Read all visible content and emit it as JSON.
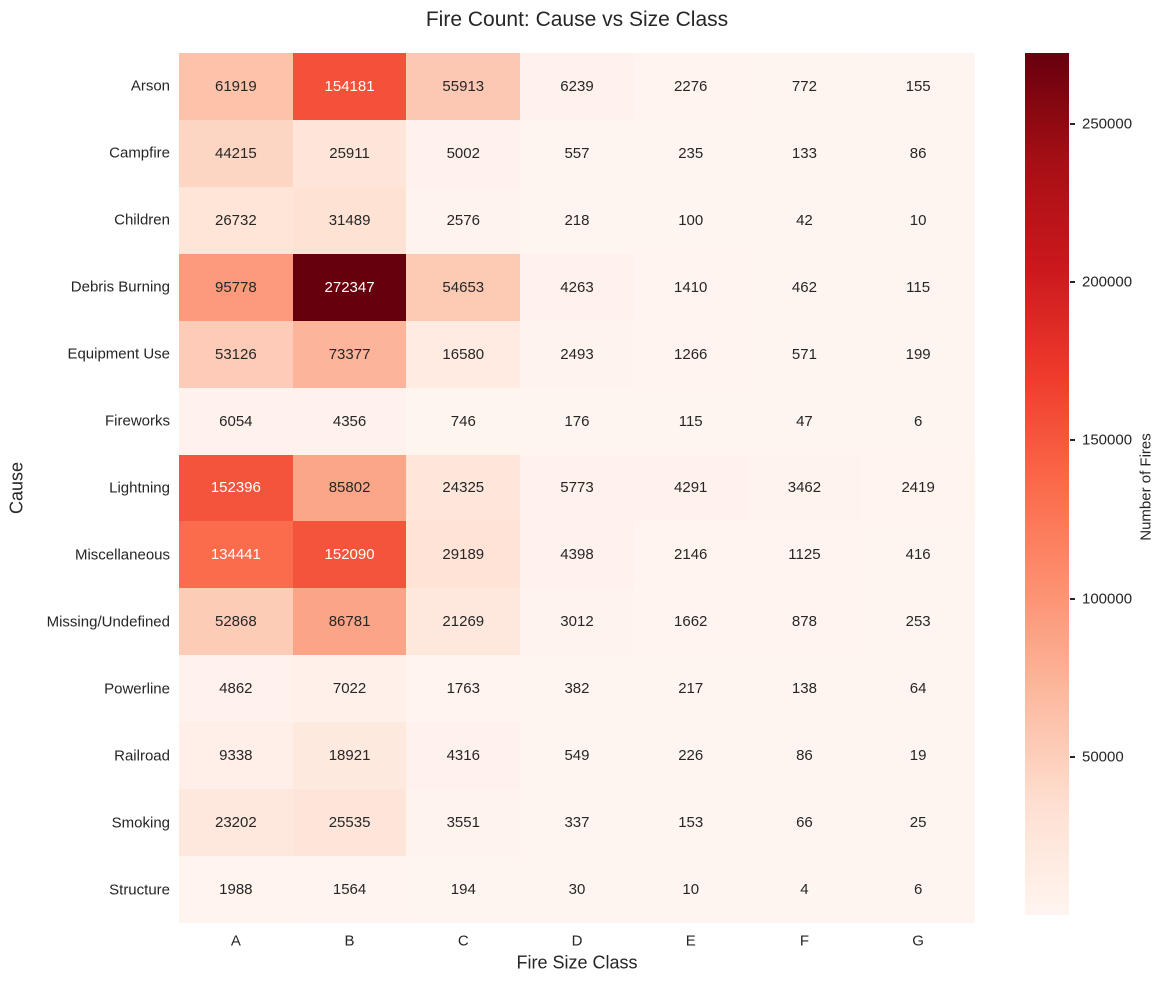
{
  "chart_data": {
    "type": "heatmap",
    "title": "Fire Count: Cause vs Size Class",
    "xlabel": "Fire Size Class",
    "ylabel": "Cause",
    "colorbar_label": "Number of Fires",
    "x_categories": [
      "A",
      "B",
      "C",
      "D",
      "E",
      "F",
      "G"
    ],
    "y_categories": [
      "Arson",
      "Campfire",
      "Children",
      "Debris Burning",
      "Equipment Use",
      "Fireworks",
      "Lightning",
      "Miscellaneous",
      "Missing/Undefined",
      "Powerline",
      "Railroad",
      "Smoking",
      "Structure"
    ],
    "values": [
      [
        61919,
        154181,
        55913,
        6239,
        2276,
        772,
        155
      ],
      [
        44215,
        25911,
        5002,
        557,
        235,
        133,
        86
      ],
      [
        26732,
        31489,
        2576,
        218,
        100,
        42,
        10
      ],
      [
        95778,
        272347,
        54653,
        4263,
        1410,
        462,
        115
      ],
      [
        53126,
        73377,
        16580,
        2493,
        1266,
        571,
        199
      ],
      [
        6054,
        4356,
        746,
        176,
        115,
        47,
        6
      ],
      [
        152396,
        85802,
        24325,
        5773,
        4291,
        3462,
        2419
      ],
      [
        134441,
        152090,
        29189,
        4398,
        2146,
        1125,
        416
      ],
      [
        52868,
        86781,
        21269,
        3012,
        1662,
        878,
        253
      ],
      [
        4862,
        7022,
        1763,
        382,
        217,
        138,
        64
      ],
      [
        9338,
        18921,
        4316,
        549,
        226,
        86,
        19
      ],
      [
        23202,
        25535,
        3551,
        337,
        153,
        66,
        25
      ],
      [
        1988,
        1564,
        194,
        30,
        10,
        4,
        6
      ]
    ],
    "vmin": 4,
    "vmax": 272347,
    "colormap": "Reds",
    "colormap_stops": [
      "#fff5f0",
      "#fee0d2",
      "#fcbba1",
      "#fc9272",
      "#fb6a4a",
      "#ef3b2c",
      "#cb181d",
      "#a50f15",
      "#67000d"
    ],
    "colorbar_ticks": [
      50000,
      100000,
      150000,
      200000,
      250000
    ],
    "text_color_dark": "#262626",
    "text_color_light": "#ffffff",
    "grid": false,
    "legend_position": "right"
  }
}
